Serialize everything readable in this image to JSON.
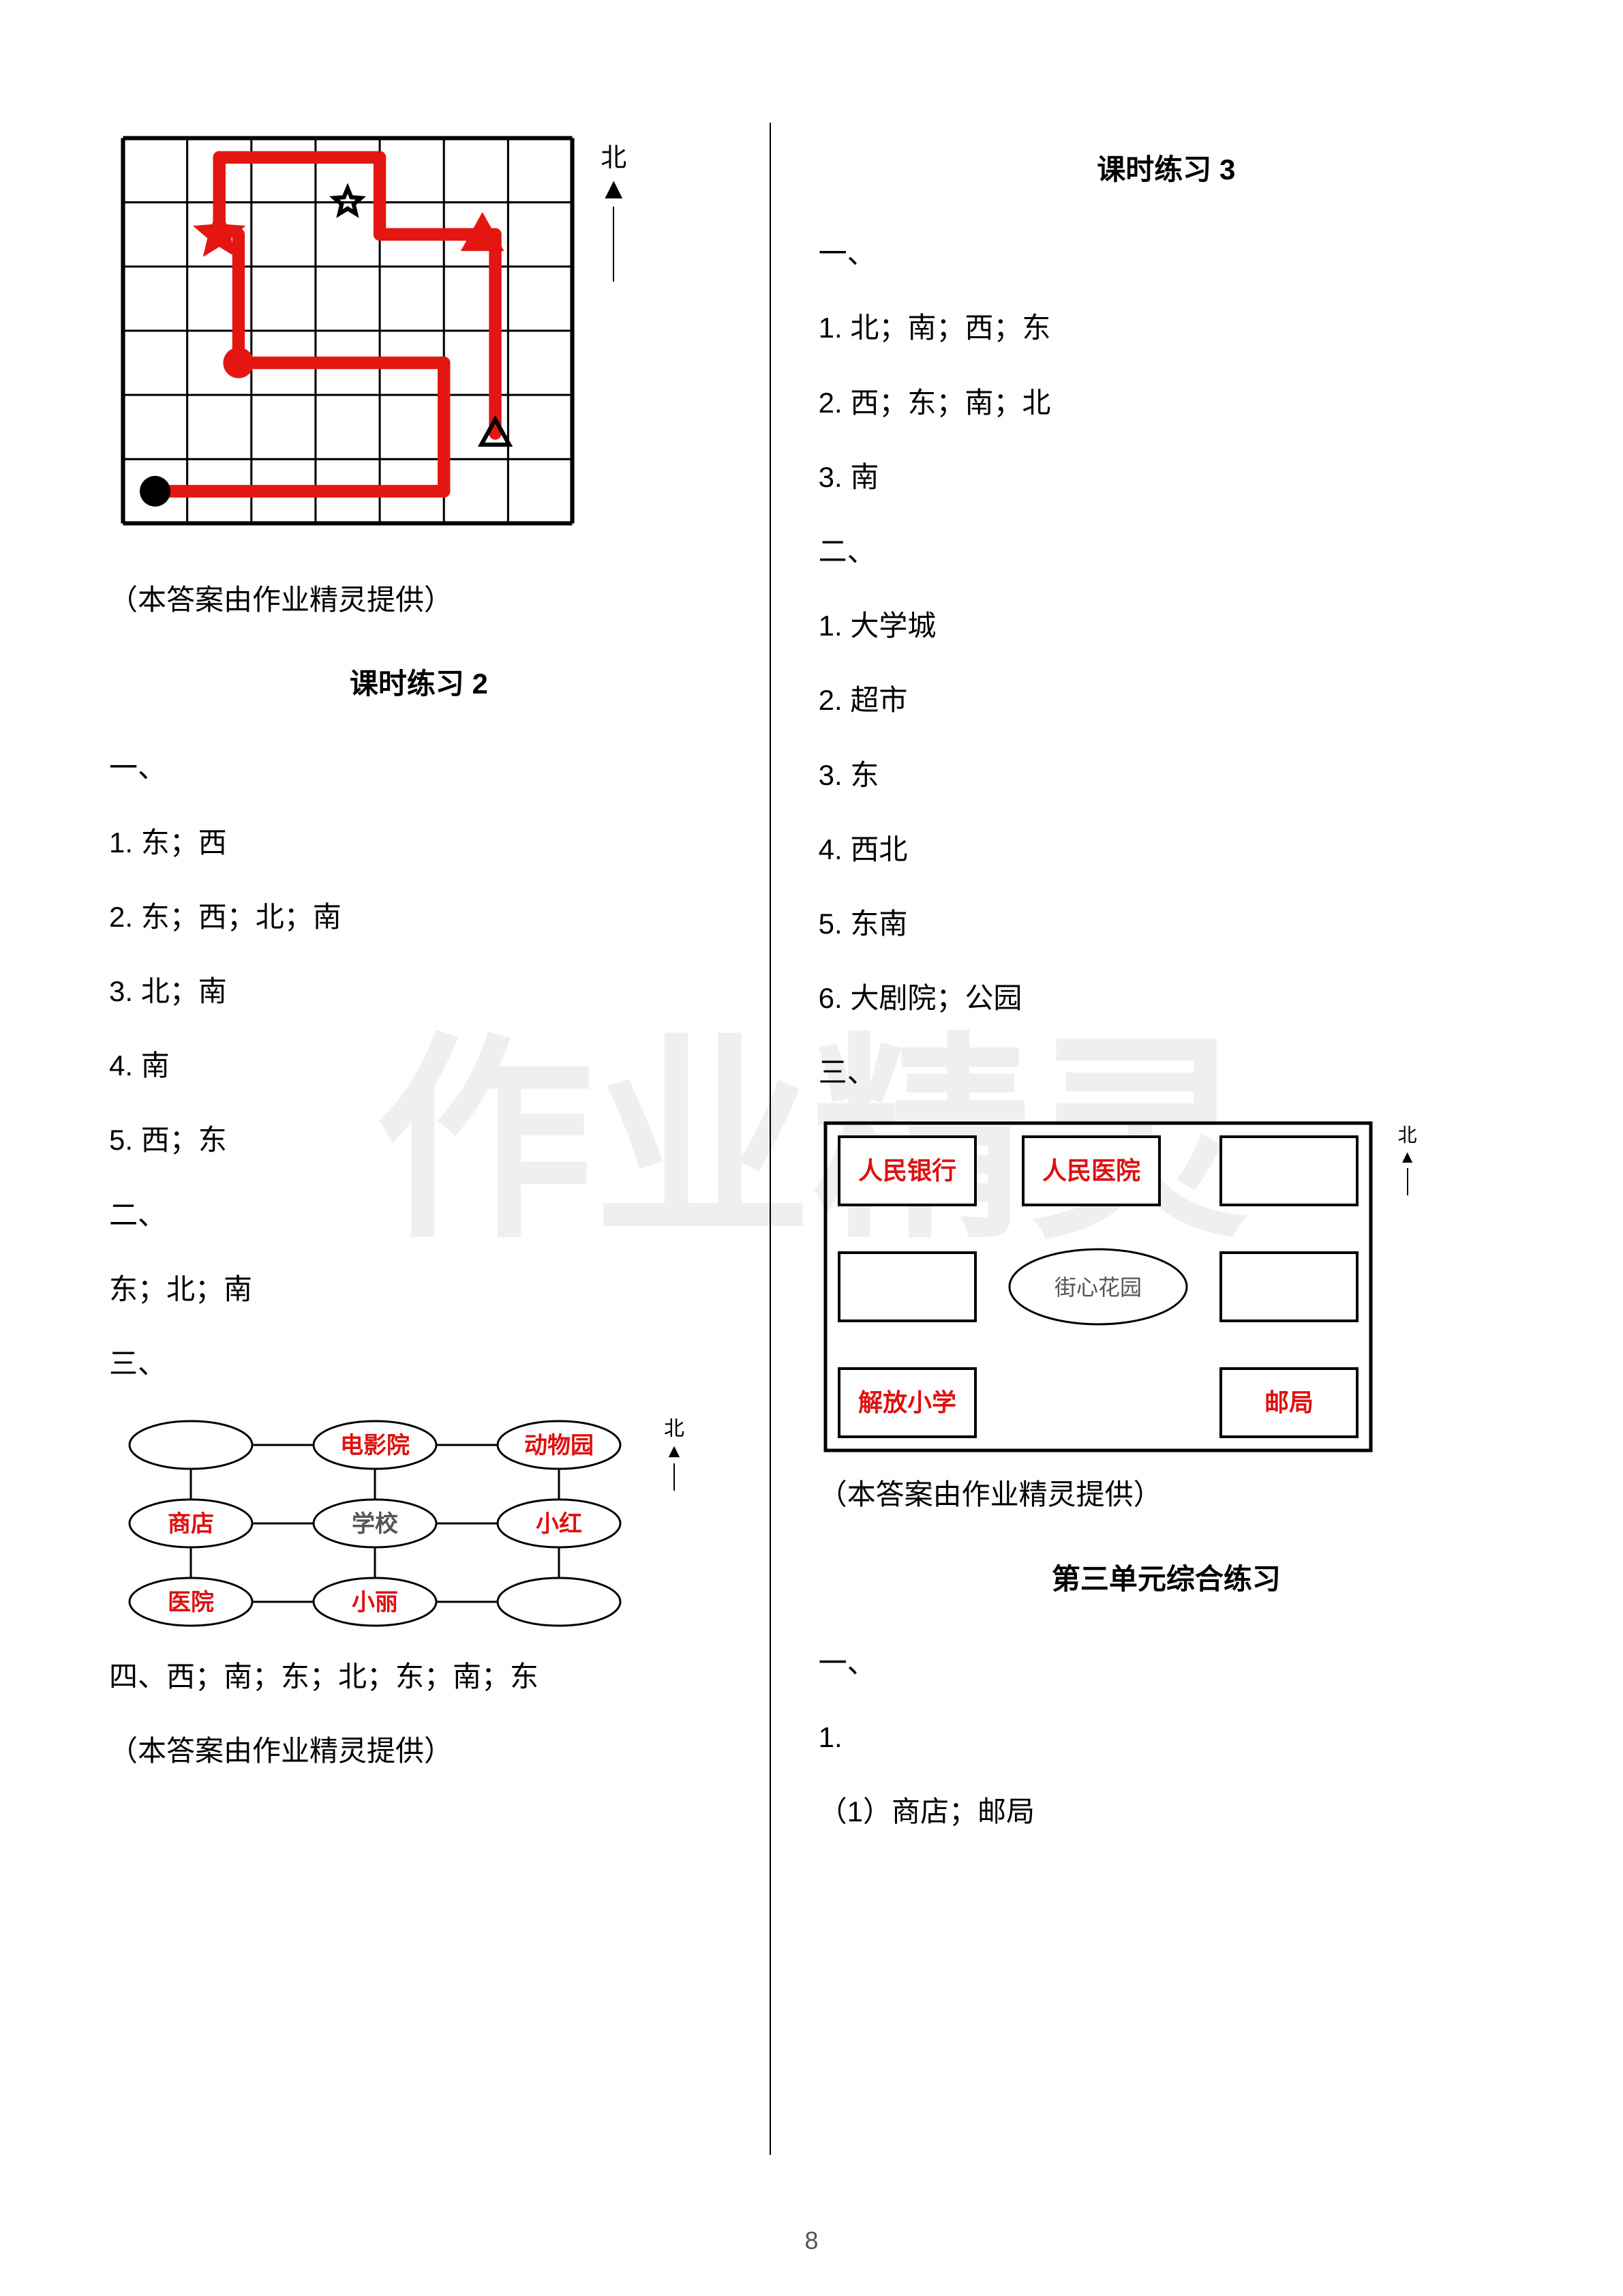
{
  "page_number": "8",
  "watermark_color": "#eeeeee",
  "col_left": {
    "grid_diagram": {
      "rows": 6,
      "cols": 7,
      "cell": 92,
      "border_color": "#000000",
      "border_width": 4,
      "path_color": "#e31612",
      "path_width": 18,
      "north_label": "北",
      "path_points": [
        [
          0.5,
          5.5
        ],
        [
          5.0,
          5.5
        ],
        [
          5.0,
          3.5
        ],
        [
          1.8,
          3.5
        ],
        [
          1.8,
          1.5
        ],
        [
          1.8,
          1.5
        ],
        [
          1.5,
          0.3
        ],
        [
          4.0,
          0.3
        ],
        [
          4.0,
          1.5
        ],
        [
          5.8,
          1.5
        ],
        [
          5.8,
          4.6
        ]
      ],
      "path_segments": [
        [
          [
            0.5,
            5.5
          ],
          [
            5.0,
            5.5
          ]
        ],
        [
          [
            5.0,
            5.5
          ],
          [
            5.0,
            3.5
          ]
        ],
        [
          [
            5.0,
            3.5
          ],
          [
            1.8,
            3.5
          ]
        ],
        [
          [
            1.8,
            3.5
          ],
          [
            1.8,
            1.5
          ]
        ],
        [
          [
            1.5,
            0.3
          ],
          [
            4.0,
            0.3
          ]
        ],
        [
          [
            4.0,
            0.3
          ],
          [
            4.0,
            1.5
          ]
        ],
        [
          [
            5.8,
            1.5
          ],
          [
            5.8,
            4.6
          ]
        ]
      ],
      "star_solid": {
        "col": 1.5,
        "row": 1.5,
        "color": "#e31612"
      },
      "star_outline": {
        "col": 3.5,
        "row": 1.0,
        "color": "#000000"
      },
      "triangle_solid": {
        "col": 5.6,
        "row": 1.5,
        "color": "#e31612"
      },
      "triangle_outline": {
        "col": 5.8,
        "row": 4.6,
        "color": "#000000"
      },
      "circle_solid_red": {
        "col": 1.8,
        "row": 3.5,
        "color": "#e31612"
      },
      "circle_solid_black": {
        "col": 0.5,
        "row": 5.5,
        "color": "#000000"
      }
    },
    "credit_1": "（本答案由作业精灵提供）",
    "heading_2": "课时练习 2",
    "sec1_label": "一、",
    "sec1_items": [
      "1. 东；西",
      "2. 东；西；北；南",
      "3. 北；南",
      "4. 南",
      "5. 西；东"
    ],
    "sec2_label": "二、",
    "sec2_text": "东；北；南",
    "sec3_label": "三、",
    "map_diagram": {
      "north_label": "北",
      "rows": [
        [
          {
            "t": "",
            "c": "#000"
          },
          {
            "t": "电影院",
            "c": "#e01010"
          },
          {
            "t": "动物园",
            "c": "#e01010"
          }
        ],
        [
          {
            "t": "商店",
            "c": "#e01010"
          },
          {
            "t": "学校",
            "c": "#555555"
          },
          {
            "t": "小红",
            "c": "#e01010"
          }
        ],
        [
          {
            "t": "医院",
            "c": "#e01010"
          },
          {
            "t": "小丽",
            "c": "#e01010"
          },
          {
            "t": "",
            "c": "#000"
          }
        ]
      ]
    },
    "sec4_text": "四、西；南；东；北；东；南；东",
    "credit_2": "（本答案由作业精灵提供）"
  },
  "col_right": {
    "heading_3": "课时练习 3",
    "sec1_label": "一、",
    "sec1_items": [
      "1. 北；南；西；东",
      "2. 西；东；南；北",
      "3. 南"
    ],
    "sec2_label": "二、",
    "sec2_items": [
      "1. 大学城",
      "2. 超市",
      "3. 东",
      "4. 西北",
      "5. 东南",
      "6. 大剧院；公园"
    ],
    "sec3_label": "三、",
    "block_map": {
      "north_label": "北",
      "center_label": "街心花园",
      "blocks": {
        "tl": "人民银行",
        "tc": "人民医院",
        "tr": "",
        "ml": "",
        "mr": "",
        "bl": "解放小学",
        "bc": "",
        "br": "邮局"
      },
      "label_color": "#e01010"
    },
    "credit_3": "（本答案由作业精灵提供）",
    "heading_4": "第三单元综合练习",
    "sec4_label": "一、",
    "sec4_items": [
      "1.",
      "（1）商店；邮局"
    ]
  }
}
